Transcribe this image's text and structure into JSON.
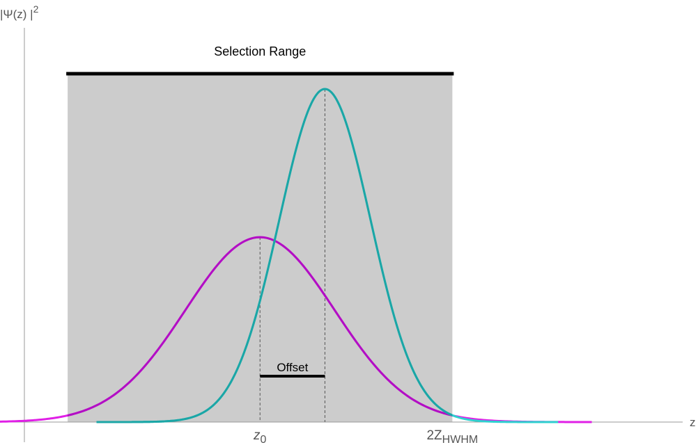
{
  "chart_data": {
    "type": "line",
    "title": "",
    "xlabel": "z",
    "ylabel": "|Ψ(z) |",
    "ylabel_superscript": "2",
    "grid": false,
    "legend": "none",
    "xlim": [
      -4.9,
      8.5
    ],
    "ylim": [
      0,
      1.1
    ],
    "xticks": [
      {
        "value": 0,
        "label": "z",
        "subscript": "0"
      },
      {
        "value": 4,
        "label": "2Z",
        "subscript": "HWHM"
      }
    ],
    "selection_range": {
      "label": "Selection Range",
      "x_start": -4,
      "x_end": 4,
      "fill_color": "#cccccc"
    },
    "offset": {
      "label": "Offset",
      "x_start": 0,
      "x_end": 1.35,
      "y": 0.1
    },
    "series": [
      {
        "color": "#b20fc4",
        "outside_color": "#e01fe6",
        "center": 0,
        "sigma": 1.55,
        "amplitude": 0.555,
        "x_range": [
          -6.9,
          6.9
        ]
      },
      {
        "color": "#1ba6a6",
        "outside_color": "#2fd0cf",
        "center": 1.35,
        "sigma": 0.95,
        "amplitude": 1.0,
        "x_range": [
          -3.4,
          6.2
        ]
      }
    ]
  }
}
